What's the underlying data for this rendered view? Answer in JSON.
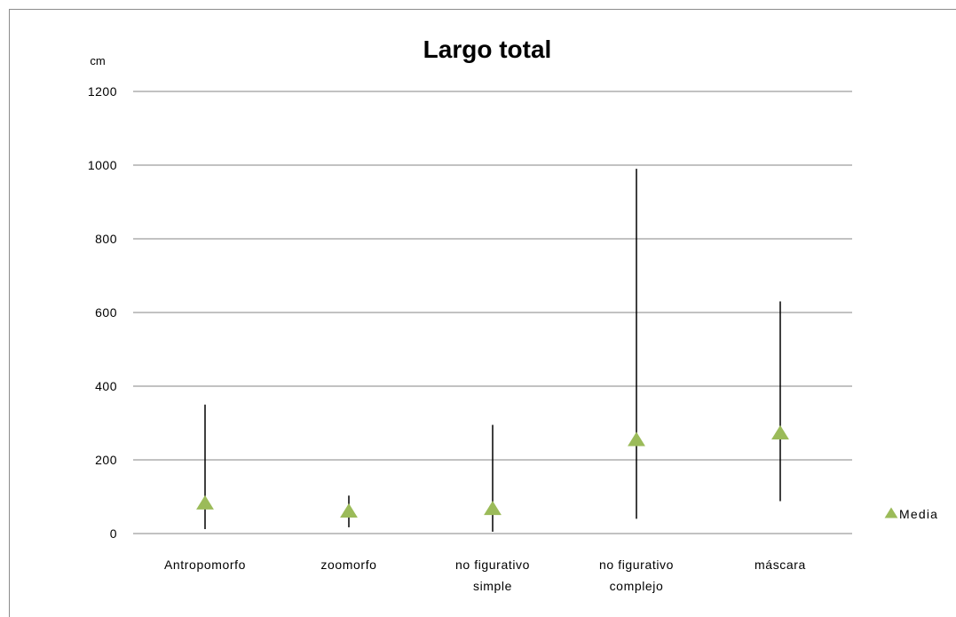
{
  "chart_data": {
    "type": "scatter",
    "title": "Largo total",
    "ylabel": "cm",
    "xlabel": "",
    "ylim": [
      0,
      1200
    ],
    "yticks": [
      0,
      200,
      400,
      600,
      800,
      1000,
      1200
    ],
    "grid": true,
    "legend": {
      "placement": "right",
      "entries": [
        "Media"
      ]
    },
    "categories": [
      [
        "Antropomorfo"
      ],
      [
        "zoomorfo"
      ],
      [
        "no figurativo",
        "simple"
      ],
      [
        "no figurativo",
        "complejo"
      ],
      [
        "máscara"
      ]
    ],
    "series": [
      {
        "name": "Media",
        "marker": "triangle",
        "color": "#9bbb59",
        "values": [
          80,
          58,
          65,
          252,
          270
        ]
      }
    ],
    "ranges": [
      {
        "min": 12,
        "max": 350
      },
      {
        "min": 17,
        "max": 103
      },
      {
        "min": 5,
        "max": 295
      },
      {
        "min": 40,
        "max": 990
      },
      {
        "min": 88,
        "max": 630
      }
    ],
    "range_color": "#000000",
    "grid_color": "#868686"
  }
}
